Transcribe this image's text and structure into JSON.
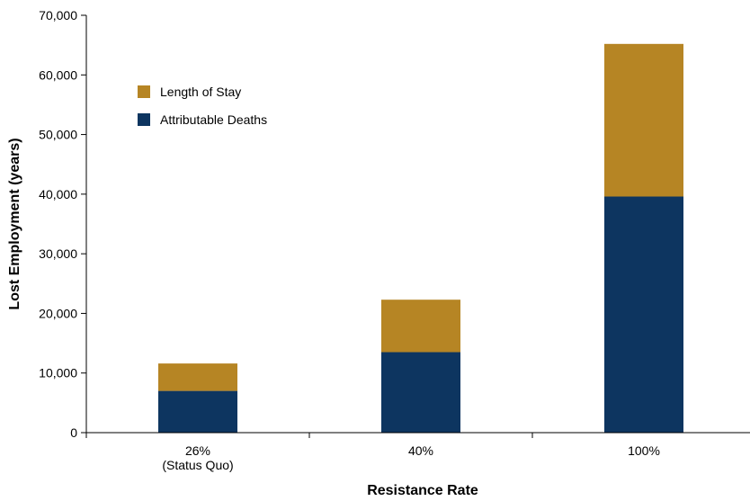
{
  "chart_data": {
    "type": "bar",
    "stacked": true,
    "title": "",
    "xlabel": "Resistance Rate",
    "ylabel": "Lost Employment (years)",
    "ylim": [
      0,
      70000
    ],
    "yticks": [
      "0",
      "10,000",
      "20,000",
      "30,000",
      "40,000",
      "50,000",
      "60,000",
      "70,000"
    ],
    "categories": [
      {
        "label": "26%",
        "sublabel": "(Status Quo)"
      },
      {
        "label": "40%",
        "sublabel": ""
      },
      {
        "label": "100%",
        "sublabel": ""
      }
    ],
    "series": [
      {
        "name": "Attributable Deaths",
        "color": "#0d3560",
        "values": [
          7000,
          13500,
          39600
        ]
      },
      {
        "name": "Length of Stay",
        "color": "#b68524",
        "values": [
          4600,
          8800,
          25600
        ]
      }
    ],
    "legend": {
      "placement": "top-left",
      "order": [
        "Length of Stay",
        "Attributable Deaths"
      ]
    },
    "grid": false
  }
}
